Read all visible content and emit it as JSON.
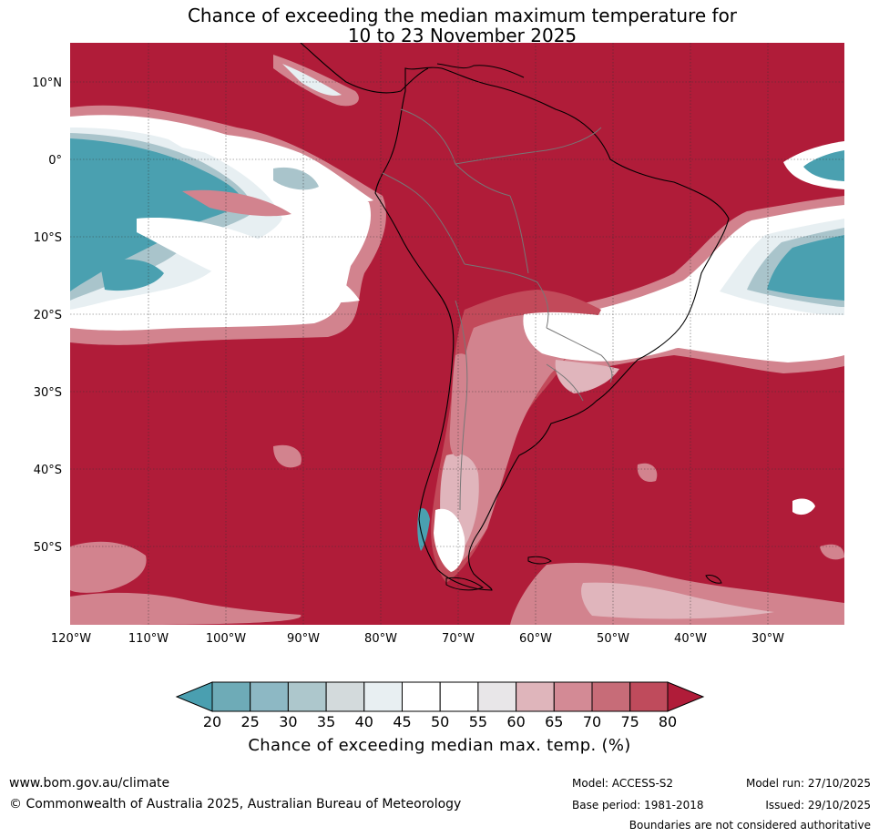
{
  "title": {
    "line1": "Chance of exceeding the median maximum temperature for",
    "line2": "10 to 23 November 2025"
  },
  "map": {
    "lat_labels": [
      "10°N",
      "0°",
      "10°S",
      "20°S",
      "30°S",
      "40°S",
      "50°S"
    ],
    "lon_labels": [
      "120°W",
      "110°W",
      "100°W",
      "90°W",
      "80°W",
      "70°W",
      "60°W",
      "50°W",
      "40°W",
      "30°W"
    ],
    "colors": {
      "very_high": "#b01c39",
      "high": "#c24a5a",
      "mid_high": "#d2838e",
      "warm_light": "#e0b5bc",
      "neutral": "#ffffff",
      "cool_light": "#e7eff2",
      "cool": "#a9c4cb",
      "very_cool": "#4aa0b0"
    }
  },
  "colorbar": {
    "labels": [
      "20",
      "25",
      "30",
      "35",
      "40",
      "45",
      "50",
      "55",
      "60",
      "65",
      "70",
      "75",
      "80"
    ],
    "colors": [
      "#4a9fb0",
      "#6eabb7",
      "#8db8c4",
      "#adc7cc",
      "#d3dadc",
      "#e8eff2",
      "#ffffff",
      "#ffffff",
      "#e8e6e8",
      "#dfb5bb",
      "#d38a95",
      "#c76c78",
      "#bf4b5c",
      "#b01c39"
    ],
    "title": "Chance of exceeding median max. temp. (%)"
  },
  "footer": {
    "website": "www.bom.gov.au/climate",
    "copyright": "© Commonwealth of Australia 2025, Australian Bureau of Meteorology",
    "model": "Model: ACCESS-S2",
    "base_period": "Base period: 1981-2018",
    "model_run": "Model run: 27/10/2025",
    "issued": "Issued: 29/10/2025",
    "disclaimer": "Boundaries are not considered authoritative"
  }
}
